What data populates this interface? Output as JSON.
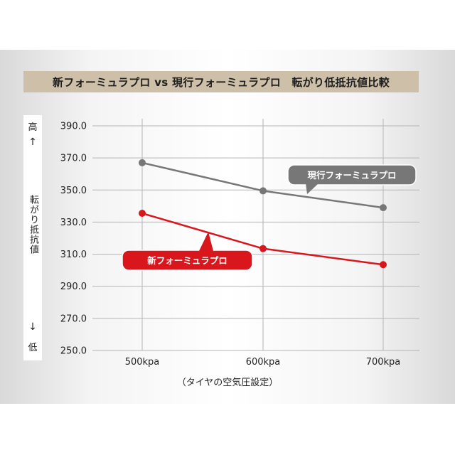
{
  "chart_data": {
    "type": "line",
    "title": "新フォーミュラプロ vs 現行フォーミュラプロ　転がり低抵抗値比較",
    "ylabel_top": "高",
    "ylabel_up_arrow": "↑",
    "ylabel": "転がり抵抗値",
    "ylabel_down_arrow": "↓",
    "ylabel_bottom": "低",
    "xlabel": "（タイヤの空気圧設定）",
    "categories": [
      "500kpa",
      "600kpa",
      "700kpa"
    ],
    "ylim": [
      250,
      390
    ],
    "yticks": [
      "390.0",
      "370.0",
      "350.0",
      "330.0",
      "310.0",
      "290.0",
      "270.0",
      "250.0"
    ],
    "grid": true,
    "series": [
      {
        "name": "現行フォーミュラプロ",
        "values": [
          367,
          349.5,
          339
        ],
        "color": "#777777"
      },
      {
        "name": "新フォーミュラプロ",
        "values": [
          335.5,
          313.5,
          303.5
        ],
        "color": "#d9161c"
      }
    ]
  }
}
